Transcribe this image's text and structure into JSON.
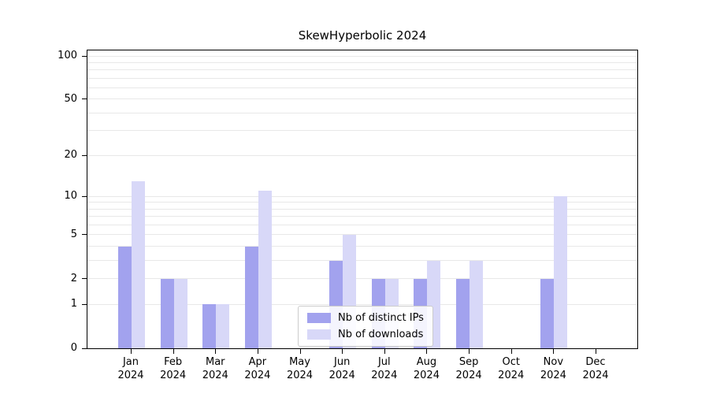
{
  "chart_data": {
    "type": "bar",
    "title": "SkewHyperbolic 2024",
    "categories": [
      "Jan 2024",
      "Feb 2024",
      "Mar 2024",
      "Apr 2024",
      "May 2024",
      "Jun 2024",
      "Jul 2024",
      "Aug 2024",
      "Sep 2024",
      "Oct 2024",
      "Nov 2024",
      "Dec 2024"
    ],
    "series": [
      {
        "name": "Nb of distinct IPs",
        "color": "#a2a2ee",
        "values": [
          4,
          2,
          1,
          4,
          0,
          3,
          2,
          2,
          2,
          0,
          2,
          0
        ]
      },
      {
        "name": "Nb of downloads",
        "color": "#d8d8f8",
        "values": [
          13,
          2,
          1,
          11,
          0,
          5,
          2,
          3,
          3,
          0,
          10,
          0
        ]
      }
    ],
    "xlabel": "",
    "ylabel": "",
    "y_scale": "log10(1+x)",
    "ylim": [
      0,
      100
    ],
    "y_ticks": [
      0,
      1,
      2,
      5,
      10,
      20,
      50,
      100
    ],
    "grid_values": [
      1,
      2,
      3,
      4,
      5,
      6,
      7,
      8,
      9,
      10,
      20,
      30,
      40,
      50,
      60,
      70,
      80,
      90,
      100
    ],
    "grid": "horizontal light-gray minor log gridlines",
    "legend_position": "lower center"
  }
}
